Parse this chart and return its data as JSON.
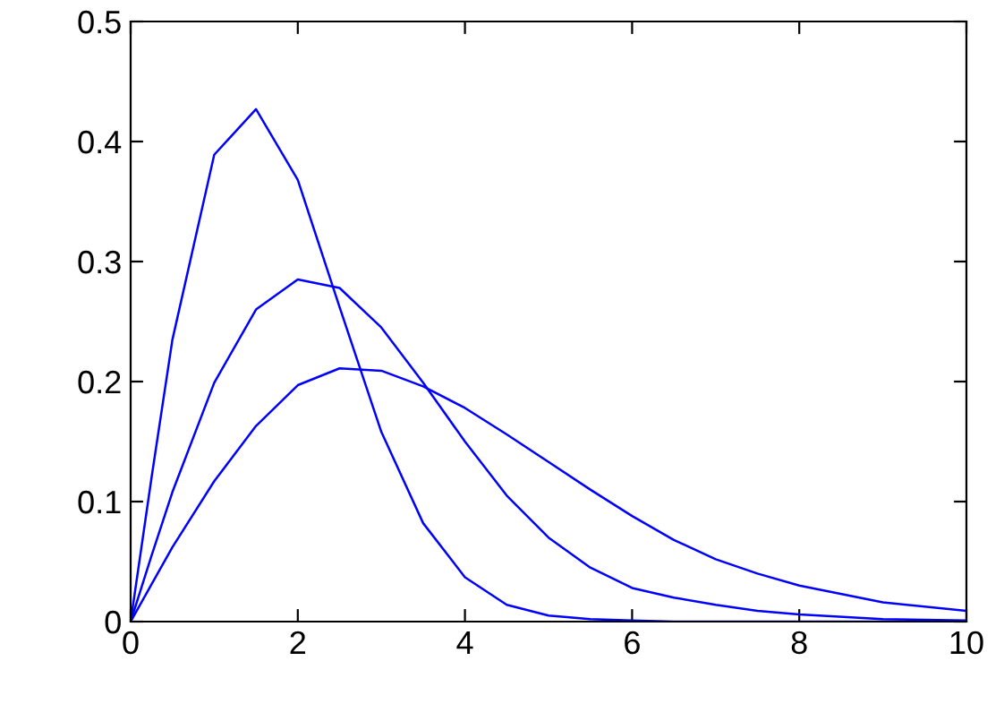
{
  "chart_data": {
    "type": "line",
    "xlim": [
      0,
      10
    ],
    "ylim": [
      0,
      0.5
    ],
    "xticks": [
      0,
      2,
      4,
      6,
      8,
      10
    ],
    "yticks": [
      0,
      0.1,
      0.2,
      0.3,
      0.4,
      0.5
    ],
    "grid": false,
    "legend": false,
    "marker": "none",
    "line_style": "solid",
    "x": [
      0,
      0.25,
      0.5,
      1,
      1.5,
      2,
      2.5,
      3,
      3.5,
      4,
      4.5,
      5,
      5.5,
      6,
      6.5,
      7,
      7.5,
      8,
      9,
      10
    ],
    "series": [
      {
        "color": "#0000ff",
        "values": [
          0,
          0.12,
          0.235,
          0.389,
          0.427,
          0.368,
          0.262,
          0.158,
          0.082,
          0.037,
          0.014,
          0.005,
          0.002,
          0.001,
          0,
          0,
          0,
          0,
          0,
          0
        ]
      },
      {
        "color": "#0000ff",
        "values": [
          0,
          0.055,
          0.108,
          0.199,
          0.26,
          0.285,
          0.278,
          0.245,
          0.199,
          0.15,
          0.105,
          0.07,
          0.045,
          0.028,
          0.02,
          0.014,
          0.009,
          0.006,
          0.002,
          0.001
        ]
      },
      {
        "color": "#0000ff",
        "values": [
          0,
          0.031,
          0.062,
          0.117,
          0.163,
          0.197,
          0.211,
          0.209,
          0.196,
          0.178,
          0.156,
          0.133,
          0.11,
          0.088,
          0.068,
          0.052,
          0.04,
          0.03,
          0.016,
          0.009
        ]
      }
    ]
  }
}
